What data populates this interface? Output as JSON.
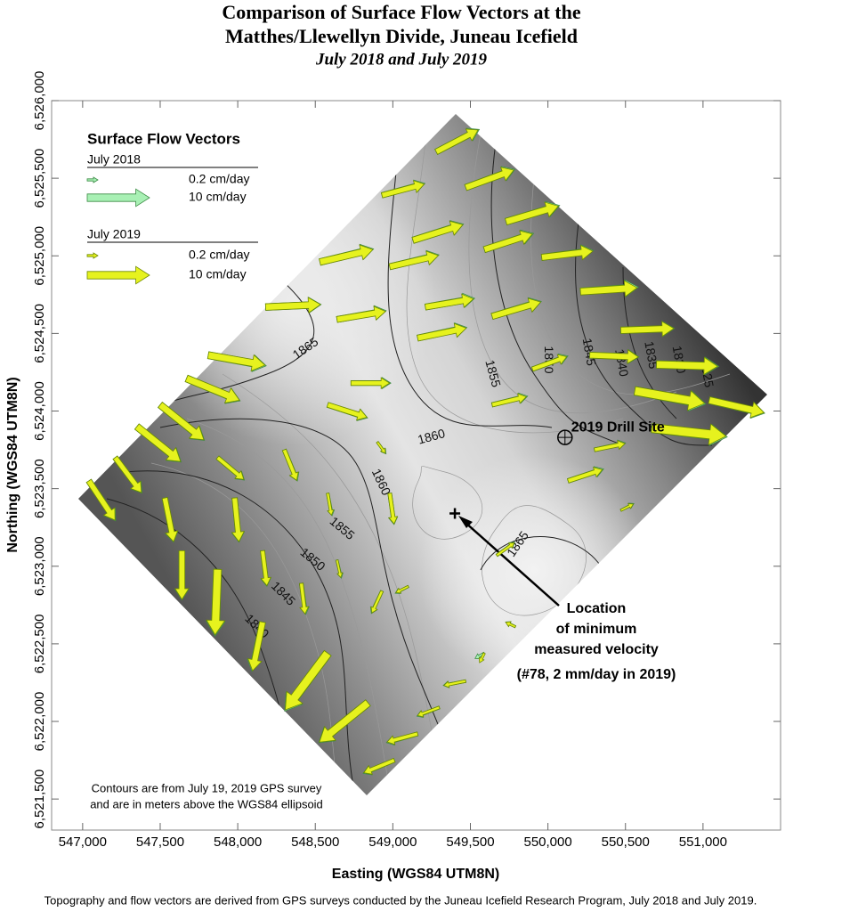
{
  "chart_data": {
    "type": "quiver",
    "title": [
      "Comparison of Surface Flow Vectors at the",
      "Matthes/Llewellyn Divide, Juneau Icefield"
    ],
    "subtitle": "July 2018 and July 2019",
    "x_label": "Easting (WGS84 UTM8N)",
    "y_label": "Northing (WGS84 UTM8N)",
    "xlim": [
      546800,
      551500
    ],
    "ylim": [
      6521300,
      6526000
    ],
    "xticks": [
      {
        "value": 547000,
        "label": "547,000"
      },
      {
        "value": 547500,
        "label": "547,500"
      },
      {
        "value": 548000,
        "label": "548,000"
      },
      {
        "value": 548500,
        "label": "548,500"
      },
      {
        "value": 549000,
        "label": "549,000"
      },
      {
        "value": 549500,
        "label": "549,500"
      },
      {
        "value": 550000,
        "label": "550,000"
      },
      {
        "value": 550500,
        "label": "550,500"
      },
      {
        "value": 551000,
        "label": "551,000"
      }
    ],
    "yticks": [
      {
        "value": 6521500,
        "label": "6,521,500"
      },
      {
        "value": 6522000,
        "label": "6,522,000"
      },
      {
        "value": 6522500,
        "label": "6,522,500"
      },
      {
        "value": 6523000,
        "label": "6,523,000"
      },
      {
        "value": 6523500,
        "label": "6,523,500"
      },
      {
        "value": 6524000,
        "label": "6,524,000"
      },
      {
        "value": 6524500,
        "label": "6,524,500"
      },
      {
        "value": 6525000,
        "label": "6,525,000"
      },
      {
        "value": 6525500,
        "label": "6,525,500"
      },
      {
        "value": 6526000,
        "label": "6,526,000"
      }
    ],
    "x": [
      549280,
      548930,
      549470,
      549130,
      549730,
      548530,
      548980,
      549590,
      549960,
      550210,
      548180,
      548640,
      549210,
      549640,
      550470,
      547810,
      548730,
      549160,
      549900,
      550270,
      550700,
      547670,
      549640,
      550560,
      551040,
      547500,
      548580,
      550670,
      547350,
      547870,
      548900,
      550300,
      547210,
      548300,
      550130,
      547040,
      547530,
      547980,
      548580,
      548980,
      550470,
      547640,
      548160,
      548640,
      549100,
      547870,
      548410,
      548930,
      548160,
      548580,
      548840,
      549470,
      549300,
      549010,
      549160,
      549670,
      549790,
      549590
    ],
    "y": [
      6525670,
      6525390,
      6525440,
      6525100,
      6525220,
      6524960,
      6524930,
      6525040,
      6524990,
      6524770,
      6524670,
      6524590,
      6524670,
      6524610,
      6524520,
      6524360,
      6524180,
      6524470,
      6524270,
      6524360,
      6524300,
      6524210,
      6524040,
      6524130,
      6524070,
      6524040,
      6524040,
      6523890,
      6523900,
      6523700,
      6523800,
      6523750,
      6523700,
      6523750,
      6523550,
      6523550,
      6523440,
      6523440,
      6523470,
      6523470,
      6523360,
      6523100,
      6523100,
      6523040,
      6522870,
      6522980,
      6522890,
      6522840,
      6522640,
      6522440,
      6522120,
      6522260,
      6522090,
      6521750,
      6521920,
      6523070,
      6522610,
      6522440
    ],
    "series": [
      {
        "name": "July 2018",
        "color": "#a8f0b4",
        "u": [
          6.9,
          6.9,
          7.9,
          8.1,
          8.6,
          8.6,
          7.9,
          7.9,
          8.3,
          9.3,
          8.9,
          7.9,
          7.9,
          7.9,
          8.6,
          9.3,
          6.4,
          7.9,
          5.7,
          7.9,
          10,
          8.6,
          5.7,
          11.4,
          8.9,
          7.1,
          6.4,
          12.1,
          7.1,
          4.3,
          1.4,
          5,
          4.3,
          2.1,
          5.7,
          4.3,
          1.4,
          0.7,
          0.7,
          0.7,
          2.1,
          0,
          0.7,
          0.7,
          -2.1,
          -0.4,
          0.7,
          -1.7,
          -1.7,
          -6.9,
          -7.9,
          -3.6,
          -3.6,
          -5,
          -5,
          2.9,
          -1.4,
          -0.7
        ],
        "v": [
          3.6,
          1.9,
          2.9,
          2.6,
          2.6,
          2.1,
          1.9,
          2.6,
          1.1,
          0.7,
          0.4,
          1.4,
          1.4,
          2.4,
          0.3,
          -1.7,
          0,
          1.7,
          2.1,
          -0.3,
          -0.3,
          -3.6,
          1.4,
          -2.1,
          -2.1,
          -5.7,
          -2.1,
          -1.4,
          -5.7,
          -3.6,
          -1.9,
          1.1,
          -5.7,
          -5,
          1.9,
          -6.4,
          -7.1,
          -7.1,
          -3.6,
          -5,
          1.1,
          -7.9,
          -5.7,
          -2.9,
          -1.1,
          -10.7,
          -5,
          -3.6,
          -7.9,
          -9.3,
          -6.4,
          -0.7,
          -1.4,
          -2.1,
          -1.4,
          2.1,
          0.7,
          -0.4
        ]
      },
      {
        "name": "July 2019",
        "color": "#e6f21e",
        "u": [
          6.7,
          6.8,
          7.7,
          8,
          8.4,
          8.5,
          7.8,
          7.7,
          8.2,
          9.1,
          8.8,
          7.8,
          7.7,
          7.8,
          8.5,
          9.1,
          6.2,
          7.8,
          5.5,
          7.8,
          9.8,
          8.5,
          5.5,
          11.2,
          8.8,
          7,
          6.3,
          11.9,
          7,
          4.2,
          1.3,
          4.9,
          4.2,
          2,
          5.5,
          4.2,
          1.4,
          0.7,
          0.6,
          0.7,
          2,
          0,
          0.7,
          0.6,
          -2,
          -0.4,
          0.6,
          -1.6,
          -1.6,
          -6.8,
          -7.8,
          -3.5,
          -3.5,
          -4.9,
          -4.9,
          2.8,
          -1.3,
          -0.1
        ],
        "v": [
          3.5,
          1.8,
          2.8,
          2.5,
          2.5,
          2,
          1.8,
          2.5,
          1,
          0.6,
          0.4,
          1.3,
          1.3,
          2.3,
          0.3,
          -1.6,
          0,
          1.6,
          2,
          -0.3,
          -0.3,
          -3.5,
          1.3,
          -2,
          -2,
          -5.6,
          -2,
          -1.3,
          -5.6,
          -3.5,
          -1.8,
          1,
          -5.6,
          -4.9,
          1.8,
          -6.3,
          -7,
          -7,
          -3.5,
          -4.9,
          1,
          -7.8,
          -5.6,
          -2.8,
          -1,
          -10.5,
          -4.9,
          -3.5,
          -7.8,
          -9.1,
          -6.3,
          -0.7,
          -1.3,
          -2,
          -1.3,
          2,
          0.6,
          -0.2
        ]
      }
    ],
    "legend_title": "Surface Flow Vectors",
    "legend_scale": [
      {
        "value": 0.2,
        "label": "0.2 cm/day"
      },
      {
        "value": 10,
        "label": "10 cm/day"
      }
    ],
    "contour_labels": {
      "x": [
        548440,
        549250,
        548920,
        549640,
        548670,
        548480,
        548290,
        548120,
        550000,
        550260,
        550470,
        550660,
        550840,
        551020,
        549810
      ],
      "y": [
        6524400,
        6523830,
        6523540,
        6524240,
        6523240,
        6523040,
        6522820,
        6522610,
        6524330,
        6524380,
        6524310,
        6524360,
        6524330,
        6524240,
        6523140
      ],
      "values": [
        1865,
        1860,
        1860,
        1855,
        1855,
        1850,
        1845,
        1840,
        1850,
        1845,
        1840,
        1835,
        1830,
        1825,
        1865
      ]
    },
    "drill_site": {
      "text": "2019 Drill Site",
      "x": 550110,
      "y": 6523830
    },
    "minimum": {
      "lines": [
        "Location",
        "of minimum",
        "measured velocity",
        "(#78, 2 mm/day in 2019)"
      ],
      "x": 549400,
      "y": 6523340
    },
    "note": [
      "Contours are from July 19, 2019 GPS survey",
      "and are in meters above the WGS84 ellipsoid"
    ],
    "footer": "Topography and flow vectors are derived from GPS surveys conducted by the Juneau Icefield Research Program, July 2018 and July 2019."
  }
}
